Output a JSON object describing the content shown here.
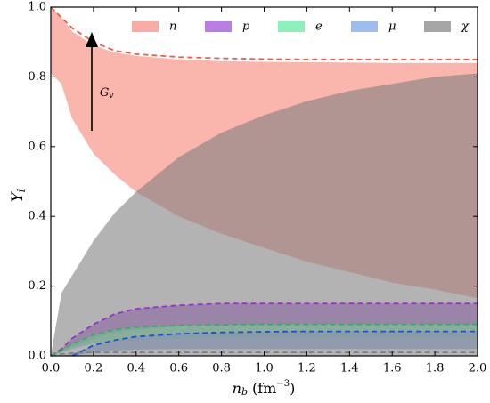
{
  "chart_data": {
    "type": "band",
    "ylabel": {
      "symbol": "Y",
      "sub": "i"
    },
    "xlabel": {
      "symbol": "n",
      "sub": "b",
      "unit": "(fm",
      "exp": "−3",
      "close": ")"
    },
    "annotation": {
      "symbol": "G",
      "sub": "v"
    },
    "x": [
      0,
      0.05,
      0.1,
      0.2,
      0.3,
      0.4,
      0.6,
      0.8,
      1.0,
      1.2,
      1.4,
      1.6,
      1.8,
      2.0
    ],
    "series": [
      {
        "name": "n",
        "color": "#f9a89f",
        "opacity": 0.85,
        "upper": [
          1.0,
          0.97,
          0.93,
          0.89,
          0.87,
          0.86,
          0.85,
          0.845,
          0.843,
          0.842,
          0.841,
          0.84,
          0.84,
          0.84
        ],
        "lower": [
          0.81,
          0.78,
          0.68,
          0.58,
          0.52,
          0.47,
          0.4,
          0.35,
          0.31,
          0.27,
          0.24,
          0.21,
          0.19,
          0.165
        ]
      },
      {
        "name": "p",
        "color": "#b070e0",
        "opacity": 0.8,
        "upper": [
          0,
          0.02,
          0.05,
          0.09,
          0.12,
          0.135,
          0.145,
          0.15,
          0.15,
          0.15,
          0.15,
          0.15,
          0.15,
          0.15
        ],
        "lower": [
          0,
          0.01,
          0.025,
          0.05,
          0.065,
          0.075,
          0.085,
          0.088,
          0.09,
          0.09,
          0.09,
          0.09,
          0.09,
          0.09
        ]
      },
      {
        "name": "e",
        "color": "#7df0b4",
        "opacity": 0.8,
        "upper": [
          0,
          0.015,
          0.035,
          0.06,
          0.075,
          0.082,
          0.087,
          0.089,
          0.09,
          0.09,
          0.09,
          0.09,
          0.09,
          0.09
        ],
        "lower": [
          0,
          0.01,
          0.02,
          0.035,
          0.042,
          0.046,
          0.049,
          0.05,
          0.05,
          0.05,
          0.05,
          0.05,
          0.05,
          0.05
        ]
      },
      {
        "name": "μ",
        "color": "#95b5f0",
        "opacity": 0.8,
        "upper": [
          0,
          0,
          0.005,
          0.03,
          0.045,
          0.055,
          0.063,
          0.067,
          0.069,
          0.07,
          0.07,
          0.07,
          0.07,
          0.07
        ],
        "lower": [
          0,
          0,
          0,
          0.01,
          0.015,
          0.018,
          0.02,
          0.02,
          0.02,
          0.02,
          0.02,
          0.02,
          0.02,
          0.02
        ]
      },
      {
        "name": "χ",
        "color": "#808080",
        "opacity": 0.6,
        "upper": [
          0,
          0.18,
          0.23,
          0.33,
          0.41,
          0.47,
          0.57,
          0.64,
          0.69,
          0.73,
          0.76,
          0.78,
          0.8,
          0.81
        ],
        "lower": [
          0,
          0,
          0,
          0,
          0,
          0,
          0,
          0,
          0,
          0,
          0,
          0,
          0,
          0
        ]
      }
    ],
    "lines": [
      {
        "color": "#e8604c",
        "values": [
          1.0,
          0.97,
          0.94,
          0.9,
          0.875,
          0.865,
          0.857,
          0.853,
          0.851,
          0.85,
          0.85,
          0.85,
          0.85,
          0.85
        ]
      },
      {
        "color": "#9a30d0",
        "values": [
          0,
          0.02,
          0.05,
          0.09,
          0.12,
          0.135,
          0.145,
          0.15,
          0.15,
          0.15,
          0.15,
          0.15,
          0.15,
          0.15
        ]
      },
      {
        "color": "#30b060",
        "values": [
          0,
          0.015,
          0.035,
          0.06,
          0.075,
          0.082,
          0.087,
          0.089,
          0.09,
          0.09,
          0.09,
          0.09,
          0.09,
          0.09
        ]
      },
      {
        "color": "#2050d0",
        "values": [
          null,
          null,
          0,
          0.03,
          0.045,
          0.055,
          0.063,
          0.067,
          0.069,
          0.07,
          0.07,
          0.07,
          0.07,
          0.07
        ]
      },
      {
        "color": "#808080",
        "values": [
          0,
          0.005,
          0.008,
          0.01,
          0.01,
          0.01,
          0.01,
          0.01,
          0.01,
          0.01,
          0.01,
          0.01,
          0.01,
          0.01
        ]
      }
    ],
    "xlim": [
      0,
      2.0
    ],
    "ylim": [
      0,
      1.0
    ],
    "xticks": [
      {
        "value": 0,
        "label": "0.0"
      },
      {
        "value": 0.2,
        "label": "0.2"
      },
      {
        "value": 0.4,
        "label": "0.4"
      },
      {
        "value": 0.6,
        "label": "0.6"
      },
      {
        "value": 0.8,
        "label": "0.8"
      },
      {
        "value": 1.0,
        "label": "1.0"
      },
      {
        "value": 1.2,
        "label": "1.2"
      },
      {
        "value": 1.4,
        "label": "1.4"
      },
      {
        "value": 1.6,
        "label": "1.6"
      },
      {
        "value": 1.8,
        "label": "1.8"
      },
      {
        "value": 2.0,
        "label": "2.0"
      }
    ],
    "yticks": [
      {
        "value": 0,
        "label": "0.0"
      },
      {
        "value": 0.2,
        "label": "0.2"
      },
      {
        "value": 0.4,
        "label": "0.4"
      },
      {
        "value": 0.6,
        "label": "0.6"
      },
      {
        "value": 0.8,
        "label": "0.8"
      },
      {
        "value": 1.0,
        "label": "1.0"
      }
    ],
    "legend": "top"
  }
}
